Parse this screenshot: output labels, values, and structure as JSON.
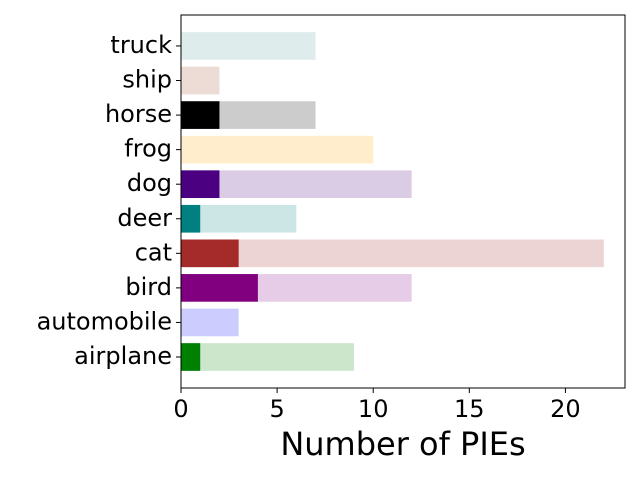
{
  "chart_data": {
    "type": "bar",
    "orientation": "horizontal",
    "xlabel": "Number of PIEs",
    "categories": [
      "airplane",
      "automobile",
      "bird",
      "cat",
      "deer",
      "dog",
      "frog",
      "horse",
      "ship",
      "truck"
    ],
    "colors": [
      "#008000",
      "#0000ff",
      "#800080",
      "#a52a2a",
      "#008080",
      "#4b0082",
      "#ffa500",
      "#000000",
      "#a0522d",
      "#5f9ea0"
    ],
    "series": [
      {
        "values": [
          9,
          3,
          12,
          22,
          6,
          12,
          10,
          7,
          2,
          7
        ],
        "alpha": 0.2
      },
      {
        "values": [
          1,
          0,
          4,
          3,
          1,
          2,
          0,
          2,
          0,
          0
        ],
        "alpha": 1
      }
    ],
    "xlim": [
      0,
      23.1
    ],
    "xticks": [
      0,
      5,
      10,
      15,
      20
    ]
  }
}
